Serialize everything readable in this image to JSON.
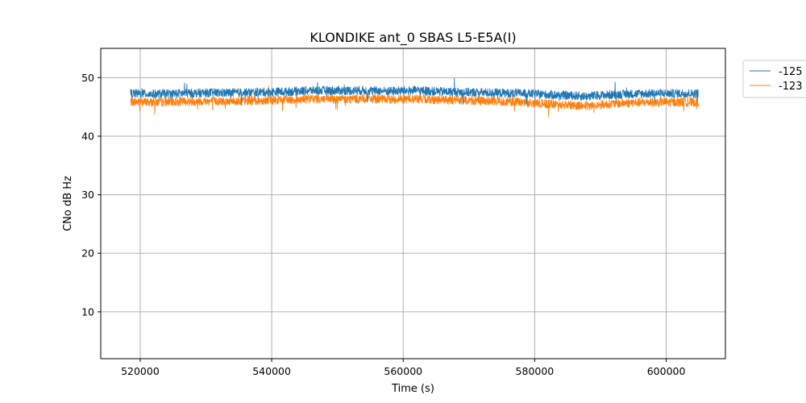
{
  "chart_data": {
    "type": "line",
    "title": "KLONDIKE ant_0 SBAS L5-E5A(I)",
    "xlabel": "Time (s)",
    "ylabel": "CNo dB Hz",
    "xlim": [
      514000,
      609000
    ],
    "ylim": [
      2,
      55
    ],
    "xticks": [
      520000,
      540000,
      560000,
      580000,
      600000
    ],
    "yticks": [
      10,
      20,
      30,
      40,
      50
    ],
    "xtick_labels": [
      "520000",
      "540000",
      "560000",
      "580000",
      "600000"
    ],
    "ytick_labels": [
      "10",
      "20",
      "30",
      "40",
      "50"
    ],
    "grid": true,
    "legend_position": "outside-top-right",
    "series": [
      {
        "name": "-125",
        "color": "#1f77b4",
        "x": [
          518500,
          522000,
          526000,
          530000,
          534000,
          538000,
          542000,
          546000,
          550000,
          554000,
          558000,
          562000,
          566000,
          570000,
          574000,
          578000,
          582000,
          586000,
          588000,
          590000,
          594000,
          598000,
          602000,
          604900
        ],
        "y": [
          47.3,
          47.2,
          47.3,
          47.4,
          47.4,
          47.5,
          47.6,
          47.8,
          47.8,
          47.8,
          47.7,
          47.8,
          47.6,
          47.5,
          47.4,
          47.3,
          47.1,
          46.9,
          46.8,
          47.0,
          47.2,
          47.3,
          47.3,
          47.3
        ]
      },
      {
        "name": "-123",
        "color": "#ff7f0e",
        "x": [
          518500,
          522000,
          526000,
          530000,
          534000,
          538000,
          542000,
          546000,
          550000,
          554000,
          558000,
          562000,
          566000,
          570000,
          574000,
          578000,
          582000,
          586000,
          588000,
          590000,
          594000,
          598000,
          602000,
          604900
        ],
        "y": [
          45.9,
          45.8,
          45.9,
          46.0,
          46.0,
          46.1,
          46.2,
          46.4,
          46.3,
          46.4,
          46.3,
          46.4,
          46.2,
          46.1,
          46.0,
          45.8,
          45.5,
          45.3,
          45.2,
          45.4,
          45.7,
          45.8,
          45.8,
          45.8
        ]
      }
    ]
  }
}
